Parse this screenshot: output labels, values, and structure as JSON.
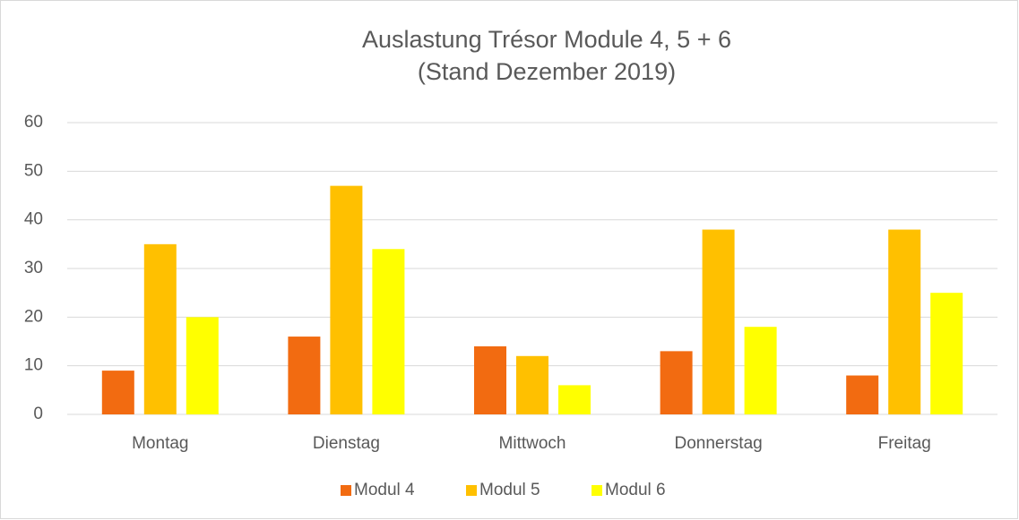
{
  "chart_data": {
    "type": "bar",
    "title": "Auslastung Trésor Module 4, 5 + 6",
    "subtitle": "(Stand Dezember 2019)",
    "categories": [
      "Montag",
      "Dienstag",
      "Mittwoch",
      "Donnerstag",
      "Freitag"
    ],
    "series": [
      {
        "name": "Modul 4",
        "color": "#f26b11",
        "values": [
          9,
          16,
          14,
          13,
          8
        ]
      },
      {
        "name": "Modul 5",
        "color": "#ffc000",
        "values": [
          35,
          47,
          12,
          38,
          38
        ]
      },
      {
        "name": "Modul 6",
        "color": "#ffff00",
        "values": [
          20,
          34,
          6,
          18,
          25
        ]
      }
    ],
    "ylim": [
      0,
      60
    ],
    "yticks": [
      0,
      10,
      20,
      30,
      40,
      50,
      60
    ],
    "grid": true,
    "legend": "bottom"
  }
}
